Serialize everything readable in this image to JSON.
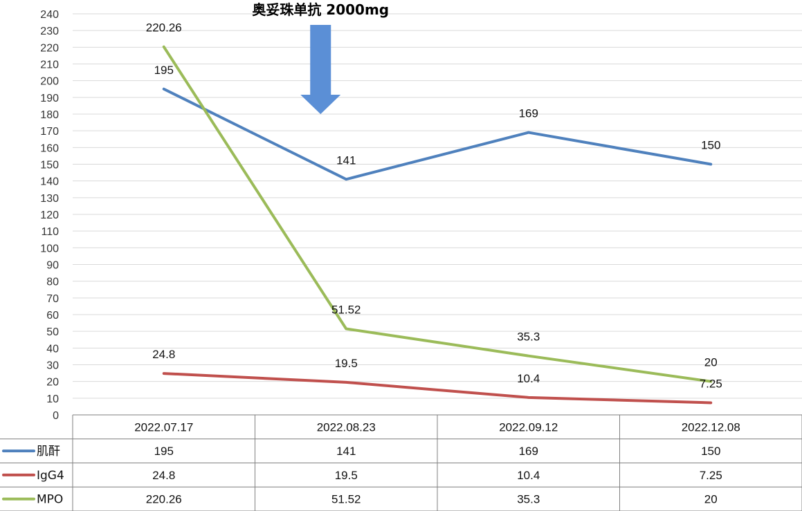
{
  "chart_data": {
    "type": "line",
    "categories": [
      "2022.07.17",
      "2022.08.23",
      "2022.09.12",
      "2022.12.08"
    ],
    "series": [
      {
        "name": "肌酐",
        "values": [
          195,
          141,
          169,
          150
        ],
        "labels": [
          "195",
          "141",
          "169",
          "150"
        ],
        "color": "#4f81bd"
      },
      {
        "name": "IgG4",
        "values": [
          24.8,
          19.5,
          10.4,
          7.25
        ],
        "labels": [
          "24.8",
          "19.5",
          "10.4",
          "7.25"
        ],
        "color": "#c0504d"
      },
      {
        "name": "MPO",
        "values": [
          220.26,
          51.52,
          35.3,
          20
        ],
        "labels": [
          "220.26",
          "51.52",
          "35.3",
          "20"
        ],
        "color": "#9bbb59"
      }
    ],
    "yticks": [
      "0",
      "10",
      "20",
      "30",
      "40",
      "50",
      "60",
      "70",
      "80",
      "90",
      "100",
      "110",
      "120",
      "130",
      "140",
      "150",
      "160",
      "170",
      "180",
      "190",
      "200",
      "210",
      "220",
      "230",
      "240"
    ],
    "ylim": [
      0,
      240
    ],
    "grid": true,
    "legend": "data-table-left",
    "annotation": {
      "text": "奥妥珠单抗 2000mg",
      "category": "2022.08.23",
      "arrow_color": "#5b8fd6"
    }
  }
}
